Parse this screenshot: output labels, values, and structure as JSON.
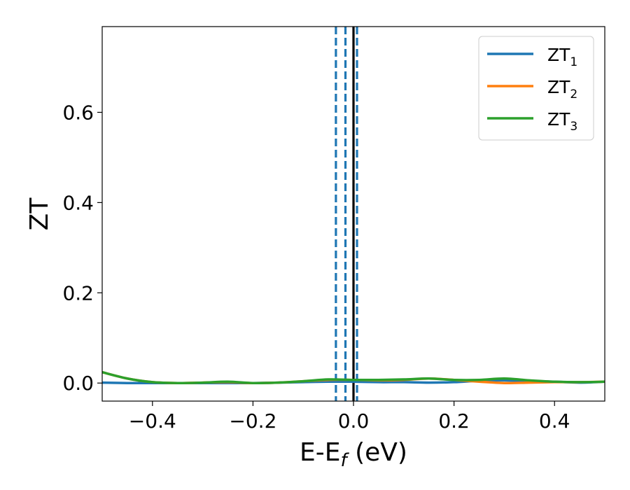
{
  "chart_data": {
    "type": "line",
    "title": "",
    "xlabel": {
      "main": "E-E",
      "sub": "f",
      "unit": " (eV)"
    },
    "ylabel": "ZT",
    "xlim": [
      -0.5,
      0.5
    ],
    "ylim": [
      -0.04,
      0.79
    ],
    "xticks": [
      -0.4,
      -0.2,
      0.0,
      0.2,
      0.4
    ],
    "xtick_labels": [
      "−0.4",
      "−0.2",
      "0.0",
      "0.2",
      "0.4"
    ],
    "yticks": [
      0.0,
      0.2,
      0.4,
      0.6
    ],
    "ytick_labels": [
      "0.0",
      "0.2",
      "0.4",
      "0.6"
    ],
    "grid": false,
    "legend_position": "top-right",
    "vlines": [
      {
        "x": -0.035,
        "style": "dashed",
        "color": "#1f77b4"
      },
      {
        "x": -0.016,
        "style": "dashed",
        "color": "#1f77b4"
      },
      {
        "x": 0.007,
        "style": "dashed",
        "color": "#1f77b4"
      },
      {
        "x": 0.0,
        "style": "solid",
        "color": "#000000"
      }
    ],
    "series": [
      {
        "name": {
          "main": "ZT",
          "sub": "1"
        },
        "color": "#1f77b4",
        "x": [
          -0.5,
          -0.45,
          -0.4,
          -0.35,
          -0.3,
          -0.25,
          -0.2,
          -0.15,
          -0.1,
          -0.05,
          0.0,
          0.05,
          0.1,
          0.15,
          0.2,
          0.25,
          0.3,
          0.35,
          0.4,
          0.45,
          0.5
        ],
        "y": [
          0.001,
          0.0,
          0.0,
          0.0,
          0.0,
          0.0,
          0.0,
          0.001,
          0.002,
          0.003,
          0.003,
          0.002,
          0.002,
          0.001,
          0.002,
          0.005,
          0.006,
          0.004,
          0.003,
          0.001,
          0.003
        ]
      },
      {
        "name": {
          "main": "ZT",
          "sub": "2"
        },
        "color": "#ff7f0e",
        "x": [
          -0.5,
          -0.45,
          -0.4,
          -0.35,
          -0.3,
          -0.25,
          -0.2,
          -0.15,
          -0.1,
          -0.05,
          0.0,
          0.05,
          0.1,
          0.15,
          0.2,
          0.25,
          0.3,
          0.35,
          0.4,
          0.45,
          0.5
        ],
        "y": [
          0.024,
          0.01,
          0.002,
          0.0,
          0.001,
          0.002,
          0.0,
          0.001,
          0.004,
          0.007,
          0.007,
          0.006,
          0.007,
          0.01,
          0.007,
          0.003,
          0.0,
          0.001,
          0.002,
          0.002,
          0.003
        ]
      },
      {
        "name": {
          "main": "ZT",
          "sub": "3"
        },
        "color": "#2ca02c",
        "x": [
          -0.5,
          -0.45,
          -0.4,
          -0.35,
          -0.3,
          -0.25,
          -0.2,
          -0.15,
          -0.1,
          -0.05,
          0.0,
          0.05,
          0.1,
          0.15,
          0.2,
          0.25,
          0.3,
          0.35,
          0.4,
          0.45,
          0.5
        ],
        "y": [
          0.024,
          0.01,
          0.002,
          0.0,
          0.001,
          0.003,
          0.0,
          0.001,
          0.004,
          0.008,
          0.007,
          0.007,
          0.008,
          0.01,
          0.007,
          0.007,
          0.01,
          0.006,
          0.003,
          0.002,
          0.003
        ]
      }
    ]
  }
}
